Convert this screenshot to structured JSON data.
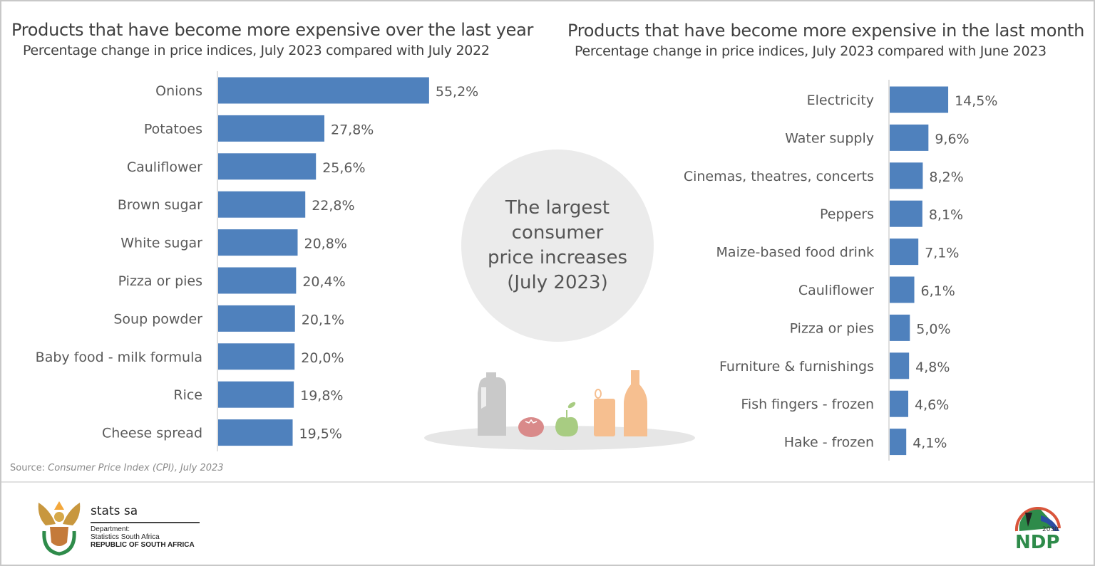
{
  "chart_data": [
    {
      "type": "bar",
      "orientation": "horizontal",
      "title": "Products that have become more expensive over the last year",
      "subtitle": "Percentage change in price indices, July 2023 compared with July 2022",
      "categories": [
        "Onions",
        "Potatoes",
        "Cauliflower",
        "Brown sugar",
        "White sugar",
        "Pizza or pies",
        "Soup powder",
        "Baby food - milk formula",
        "Rice",
        "Cheese spread"
      ],
      "values": [
        55.2,
        27.8,
        25.6,
        22.8,
        20.8,
        20.4,
        20.1,
        20.0,
        19.8,
        19.5
      ],
      "data_labels": [
        "55,2%",
        "27,8%",
        "25,6%",
        "22,8%",
        "20,8%",
        "20,4%",
        "20,1%",
        "20,0%",
        "19,8%",
        "19,5%"
      ],
      "color": "#4f81bd",
      "grid": false
    },
    {
      "type": "bar",
      "orientation": "horizontal",
      "title": "Products that have become more expensive in the last month",
      "subtitle": "Percentage change in price indices, July 2023 compared with June 2023",
      "categories": [
        "Electricity",
        "Water supply",
        "Cinemas, theatres, concerts",
        "Peppers",
        "Maize-based food drink",
        "Cauliflower",
        "Pizza or pies",
        "Furniture & furnishings",
        "Fish fingers - frozen",
        "Hake - frozen"
      ],
      "values": [
        14.5,
        9.6,
        8.2,
        8.1,
        7.1,
        6.1,
        5.0,
        4.8,
        4.6,
        4.1
      ],
      "data_labels": [
        "14,5%",
        "9,6%",
        "8,2%",
        "8,1%",
        "7,1%",
        "6,1%",
        "5,0%",
        "4,8%",
        "4,6%",
        "4,1%"
      ],
      "color": "#4f81bd",
      "grid": false
    }
  ],
  "center": {
    "text": "The largest consumer price increases (July 2023)"
  },
  "source": {
    "prefix": "Source: ",
    "text": "Consumer Price Index (CPI), July 2023"
  },
  "footer": {
    "org": "stats sa",
    "dept_line1": "Department:",
    "dept_line2": "Statistics South Africa",
    "country": "REPUBLIC OF SOUTH AFRICA",
    "ndp_year": "2030",
    "ndp": "NDP"
  }
}
